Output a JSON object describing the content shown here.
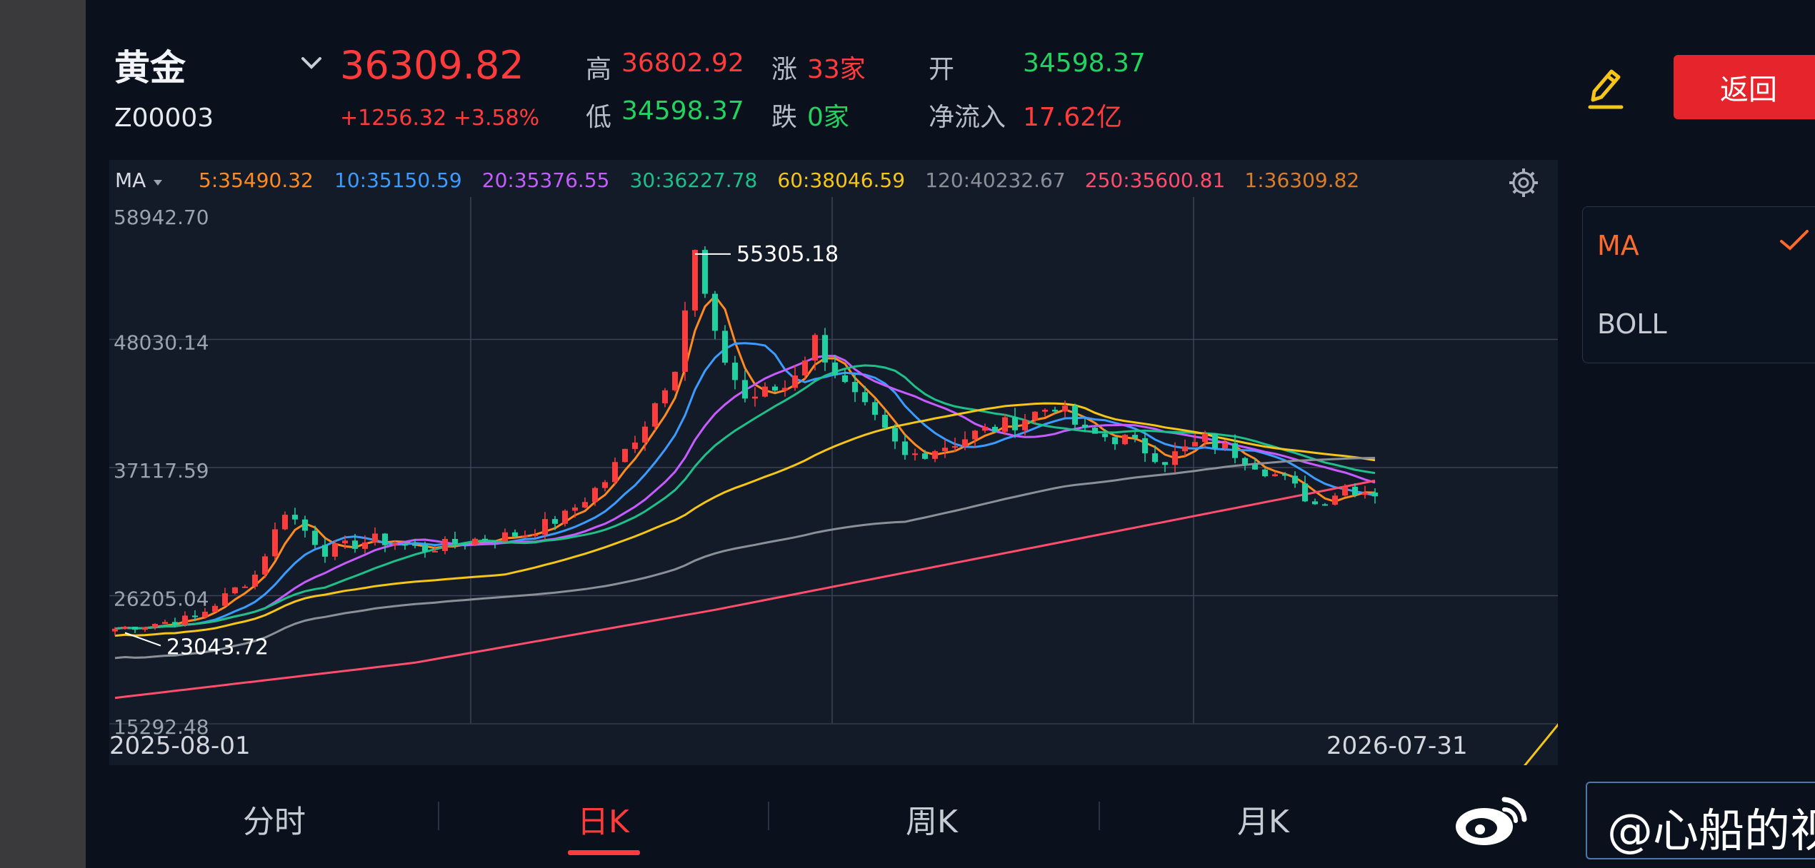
{
  "header": {
    "name": "黄金",
    "code": "Z00003",
    "price": "36309.82",
    "change": "+1256.32 +3.58%",
    "stats": {
      "high_label": "高",
      "high_value": "36802.92",
      "low_label": "低",
      "low_value": "34598.37",
      "up_label": "涨",
      "up_value": "33家",
      "down_label": "跌",
      "down_value": "0家",
      "open_label": "开",
      "open_value": "34598.37",
      "inflow_label": "净流入",
      "inflow_value": "17.62亿"
    },
    "back_label": "返回",
    "icons": {
      "dropdown": "chevron-down-icon",
      "edit": "pencil-icon"
    }
  },
  "legend": {
    "indicator": "MA",
    "items": [
      {
        "text": "5:35490.32",
        "color": "#ff8a1f"
      },
      {
        "text": "10:35150.59",
        "color": "#3b9cff"
      },
      {
        "text": "20:35376.55",
        "color": "#c65cff"
      },
      {
        "text": "30:36227.78",
        "color": "#1fbf8a"
      },
      {
        "text": "60:38046.59",
        "color": "#f5c518"
      },
      {
        "text": "120:40232.67",
        "color": "#8a8f98"
      },
      {
        "text": "250:35600.81",
        "color": "#ff4d6d"
      },
      {
        "text": "1:36309.82",
        "color": "#d97d2b"
      }
    ]
  },
  "indicators": {
    "items": [
      "MA",
      "BOLL"
    ],
    "selected": "MA"
  },
  "tabs": [
    {
      "label": "分时",
      "active": false
    },
    {
      "label": "日K",
      "active": true
    },
    {
      "label": "周K",
      "active": false
    },
    {
      "label": "月K",
      "active": false
    }
  ],
  "watermark": "@心船的视野",
  "chart_data": {
    "type": "candlestick",
    "y_ticks": [
      "58942.70",
      "48030.14",
      "37117.59",
      "26205.04",
      "15292.48"
    ],
    "ylim": [
      15292.48,
      58942.7
    ],
    "x_labels": [
      "2025-08-01",
      "2026-07-31"
    ],
    "annotations": {
      "max": "55305.18",
      "min": "23043.72"
    },
    "grid": true,
    "key_points": [
      [
        0,
        23400
      ],
      [
        8,
        24300
      ],
      [
        14,
        28000
      ],
      [
        17,
        33500
      ],
      [
        21,
        30000
      ],
      [
        26,
        31000
      ],
      [
        31,
        30200
      ],
      [
        36,
        31000
      ],
      [
        41,
        31500
      ],
      [
        45,
        33000
      ],
      [
        49,
        36000
      ],
      [
        53,
        41000
      ],
      [
        56,
        46000
      ],
      [
        58,
        55305
      ],
      [
        60,
        48000
      ],
      [
        63,
        43000
      ],
      [
        67,
        44000
      ],
      [
        70,
        48000
      ],
      [
        73,
        44000
      ],
      [
        76,
        41000
      ],
      [
        79,
        38000
      ],
      [
        83,
        39000
      ],
      [
        86,
        40000
      ],
      [
        90,
        41000
      ],
      [
        94,
        42500
      ],
      [
        97,
        40000
      ],
      [
        101,
        39500
      ],
      [
        105,
        37800
      ],
      [
        109,
        39500
      ],
      [
        113,
        38000
      ],
      [
        117,
        36000
      ],
      [
        120,
        34000
      ],
      [
        123,
        35500
      ],
      [
        126,
        35000
      ]
    ],
    "ma_series": [
      {
        "name": "5",
        "color": "#ff8a1f",
        "smooth": 4,
        "offset": 0
      },
      {
        "name": "10",
        "color": "#3b9cff",
        "smooth": 9,
        "offset": 0
      },
      {
        "name": "20",
        "color": "#c65cff",
        "smooth": 16,
        "offset": 0
      },
      {
        "name": "30",
        "color": "#1fbf8a",
        "smooth": 22,
        "offset": 0
      },
      {
        "name": "60",
        "color": "#f5c518",
        "smooth": 40,
        "offset": -600
      },
      {
        "name": "120",
        "color": "#8a8f98",
        "smooth": 80,
        "offset": -2500
      },
      {
        "name": "250",
        "color": "#ff4d6d",
        "smooth": 0,
        "offset": 0
      }
    ],
    "ma250_points": [
      [
        0,
        17500
      ],
      [
        30,
        20500
      ],
      [
        60,
        25000
      ],
      [
        90,
        30000
      ],
      [
        126,
        36000
      ]
    ],
    "trendline": [
      [
        1907,
        940
      ],
      [
        2158,
        632
      ]
    ]
  }
}
